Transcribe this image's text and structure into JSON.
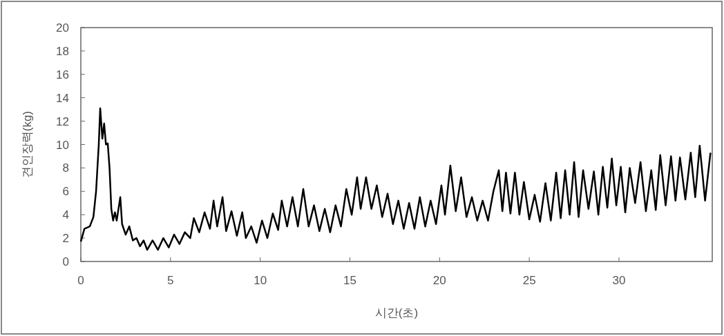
{
  "chart_data": {
    "type": "line",
    "xlabel": "시간(초)",
    "ylabel": "견인장력(kg)",
    "color": "#000000",
    "x": [
      0,
      0.2,
      0.5,
      0.7,
      0.85,
      1.0,
      1.08,
      1.2,
      1.3,
      1.4,
      1.5,
      1.6,
      1.7,
      1.8,
      1.9,
      2.0,
      2.2,
      2.3,
      2.5,
      2.7,
      2.9,
      3.1,
      3.3,
      3.5,
      3.7,
      4.0,
      4.3,
      4.6,
      4.9,
      5.2,
      5.5,
      5.8,
      6.1,
      6.3,
      6.6,
      6.9,
      7.2,
      7.4,
      7.6,
      7.9,
      8.1,
      8.4,
      8.7,
      9.0,
      9.2,
      9.5,
      9.8,
      10.1,
      10.4,
      10.7,
      11.0,
      11.2,
      11.5,
      11.8,
      12.1,
      12.4,
      12.7,
      13.0,
      13.3,
      13.6,
      13.9,
      14.2,
      14.5,
      14.8,
      15.1,
      15.4,
      15.6,
      15.9,
      16.2,
      16.5,
      16.8,
      17.1,
      17.4,
      17.7,
      18.0,
      18.3,
      18.6,
      18.9,
      19.2,
      19.5,
      19.8,
      20.1,
      20.3,
      20.6,
      20.9,
      21.2,
      21.5,
      21.8,
      22.1,
      22.4,
      22.7,
      23.0,
      23.3,
      23.5,
      23.7,
      23.95,
      24.2,
      24.45,
      24.7,
      25.0,
      25.3,
      25.6,
      25.9,
      26.2,
      26.5,
      26.75,
      27.0,
      27.25,
      27.5,
      27.75,
      28.0,
      28.3,
      28.6,
      28.85,
      29.1,
      29.35,
      29.6,
      29.85,
      30.1,
      30.35,
      30.6,
      30.9,
      31.2,
      31.5,
      31.8,
      32.05,
      32.3,
      32.6,
      32.9,
      33.15,
      33.4,
      33.7,
      34.0,
      34.25,
      34.5,
      34.8,
      35.1
    ],
    "values": [
      1.7,
      2.8,
      3.0,
      3.8,
      6,
      10,
      13.1,
      10.5,
      11.8,
      10,
      10.1,
      8,
      4.5,
      3.5,
      4.2,
      3.5,
      5.5,
      3.2,
      2.3,
      3.0,
      1.8,
      2.0,
      1.3,
      1.8,
      1.0,
      1.8,
      1.0,
      2.0,
      1.2,
      2.3,
      1.5,
      2.5,
      2.0,
      3.7,
      2.5,
      4.2,
      2.8,
      5.2,
      3.0,
      5.5,
      2.6,
      4.3,
      2.2,
      4.2,
      2.0,
      3.0,
      1.6,
      3.5,
      2.0,
      4.1,
      2.7,
      5.2,
      3.0,
      5.5,
      3.0,
      6.2,
      3.0,
      4.8,
      2.6,
      4.5,
      2.5,
      4.8,
      3.0,
      6.2,
      4.0,
      7.2,
      4.5,
      7.2,
      4.5,
      6.5,
      3.8,
      5.8,
      3.2,
      5.2,
      2.8,
      5.0,
      2.8,
      5.5,
      3.0,
      5.2,
      3.2,
      6.5,
      4.0,
      8.2,
      4.3,
      7.2,
      3.8,
      5.5,
      3.5,
      5.2,
      3.5,
      6.0,
      7.8,
      4.3,
      7.6,
      4.1,
      7.6,
      4.0,
      6.8,
      3.6,
      5.7,
      3.4,
      6.7,
      3.5,
      7.6,
      3.7,
      7.8,
      4.0,
      8.5,
      3.8,
      7.8,
      4.5,
      7.7,
      4.0,
      8.1,
      4.6,
      8.8,
      4.8,
      8.1,
      4.2,
      8.0,
      5.0,
      8.5,
      4.3,
      7.8,
      4.4,
      9.1,
      4.8,
      9.0,
      5.2,
      8.9,
      5.3,
      9.3,
      5.5,
      9.9,
      5.2,
      9.3
    ],
    "xlim": [
      0,
      35.2
    ],
    "ylim": [
      0,
      20
    ],
    "xticks": [
      0,
      5,
      10,
      15,
      20,
      25,
      30
    ],
    "yticks": [
      0,
      2,
      4,
      6,
      8,
      10,
      12,
      14,
      16,
      18,
      20
    ]
  }
}
